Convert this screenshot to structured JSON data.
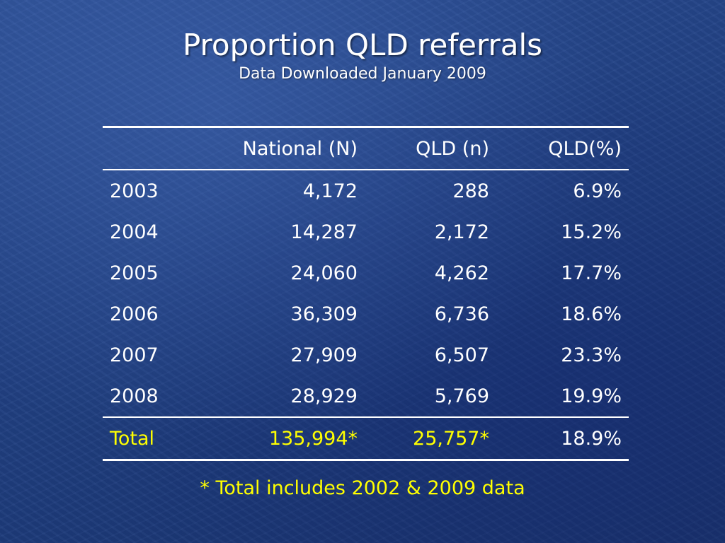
{
  "slide": {
    "title": "Proportion QLD referrals",
    "subtitle": "Data Downloaded January 2009",
    "footnote": "* Total includes 2002 & 2009 data"
  },
  "table": {
    "headers": [
      "",
      "National (N)",
      "QLD (n)",
      "QLD(%)"
    ],
    "rows": [
      {
        "year": "2003",
        "national": "4,172",
        "qld": "288",
        "pct": "6.9%"
      },
      {
        "year": "2004",
        "national": "14,287",
        "qld": "2,172",
        "pct": "15.2%"
      },
      {
        "year": "2005",
        "national": "24,060",
        "qld": "4,262",
        "pct": "17.7%"
      },
      {
        "year": "2006",
        "national": "36,309",
        "qld": "6,736",
        "pct": "18.6%"
      },
      {
        "year": "2007",
        "national": "27,909",
        "qld": "6,507",
        "pct": "23.3%"
      },
      {
        "year": "2008",
        "national": "28,929",
        "qld": "5,769",
        "pct": "19.9%"
      }
    ],
    "total": {
      "label": "Total",
      "national": "135,994*",
      "qld": "25,757*",
      "pct": "18.9%"
    }
  },
  "colors": {
    "background": "#234386",
    "text": "#ffffff",
    "highlight": "#ffff00"
  }
}
